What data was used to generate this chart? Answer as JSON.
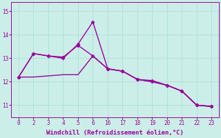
{
  "xlabel": "Windchill (Refroidissement éolien,°C)",
  "background_color": "#cceee8",
  "line_color": "#990099",
  "grid_color": "#aadddd",
  "series": [
    {
      "xpos": [
        0,
        1,
        2,
        3,
        4,
        5,
        6,
        7,
        8,
        9,
        10,
        11,
        12,
        13
      ],
      "y": [
        12.2,
        13.2,
        13.1,
        13.05,
        13.55,
        13.1,
        12.55,
        12.45,
        12.1,
        12.0,
        11.85,
        11.6,
        11.0,
        10.95
      ],
      "marker": "D",
      "markersize": 2.5,
      "linewidth": 1.0
    },
    {
      "xpos": [
        0,
        1,
        2,
        3,
        4,
        5,
        6,
        7,
        8,
        9,
        10,
        11,
        12,
        13
      ],
      "y": [
        12.2,
        13.2,
        13.1,
        13.0,
        13.6,
        14.55,
        12.55,
        12.45,
        12.1,
        12.05,
        11.85,
        11.6,
        11.0,
        10.95
      ],
      "marker": "D",
      "markersize": 2.5,
      "linewidth": 1.0
    },
    {
      "xpos": [
        0,
        1,
        2,
        3,
        4,
        5,
        6,
        7,
        8,
        9,
        10,
        11,
        12,
        13
      ],
      "y": [
        12.2,
        12.2,
        12.25,
        12.3,
        12.3,
        13.1,
        12.55,
        12.45,
        12.1,
        12.0,
        11.85,
        11.6,
        11.0,
        10.95
      ],
      "marker": null,
      "markersize": 0,
      "linewidth": 1.0
    }
  ],
  "xtick_positions": [
    0,
    1,
    2,
    3,
    4,
    5,
    6,
    7,
    8,
    9,
    10,
    11,
    12,
    13
  ],
  "xtick_labels": [
    "0",
    "2",
    "3",
    "4",
    "5",
    "6",
    "16",
    "17",
    "18",
    "19",
    "20",
    "21",
    "22",
    "23"
  ],
  "yticks": [
    11,
    12,
    13,
    14,
    15
  ],
  "ylim": [
    10.5,
    15.4
  ],
  "xlim": [
    -0.5,
    13.5
  ],
  "tick_fontsize": 5.5,
  "xlabel_fontsize": 6.5,
  "figsize": [
    3.2,
    2.0
  ],
  "dpi": 100
}
